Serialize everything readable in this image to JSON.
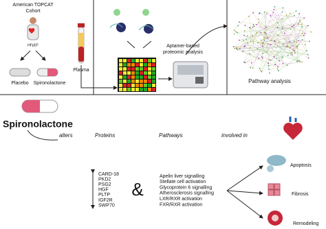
{
  "header": {
    "cohort": [
      "American TOPCAT",
      "Cohort"
    ],
    "condition": "HFpEF",
    "arms": [
      "Placebo",
      "Spironolactone"
    ],
    "sample": "Plasma",
    "assay": [
      "Aptamer-based",
      "proteomic analysis"
    ],
    "analysis": "Pathway analysis"
  },
  "summary": {
    "drug": "Spironolactone",
    "steps": [
      "alters",
      "Proteins",
      "Pathways",
      "involved in"
    ],
    "proteins": [
      "CARD-18",
      "PKD2",
      "PSG2",
      "HGF",
      "PLTP",
      "IGF2R",
      "SWP70"
    ],
    "conjunction": "&",
    "pathways": [
      "Apelin liver signalling",
      "Stellate cell activation",
      "Glycoprotein 6 signalling",
      "Atherosclerosis signalling",
      "LXR/RXR activation",
      "FXR/RXR activation"
    ],
    "outcomes": [
      "Apoptosis",
      "Fibrosis",
      "Remodeling"
    ]
  }
}
